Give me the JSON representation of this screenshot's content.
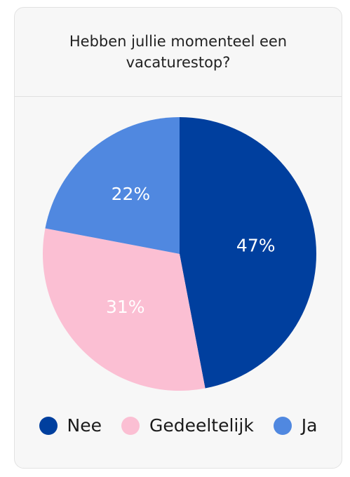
{
  "chart_data": {
    "type": "pie",
    "title": "Hebben jullie momenteel een vacaturestop?",
    "categories": [
      "Nee",
      "Gedeeltelijk",
      "Ja"
    ],
    "values": [
      47,
      31,
      22
    ],
    "value_labels": [
      "47%",
      "31%",
      "22%"
    ],
    "colors": [
      "#003f9e",
      "#fbbfd3",
      "#5088e0"
    ]
  }
}
